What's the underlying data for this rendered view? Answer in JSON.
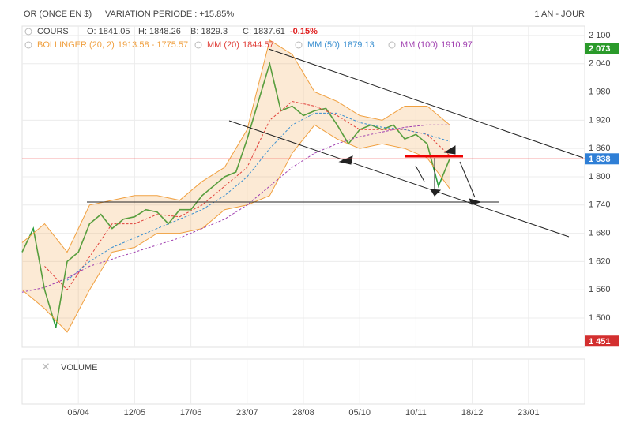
{
  "chart_data": {
    "type": "line",
    "title": "OR (ONCE EN $)",
    "subtitle": "VARIATION PERIODE : +15.85%",
    "period": "1 AN - JOUR",
    "quote": {
      "label": "COURS",
      "open": "O: 1841.05",
      "high": "H: 1848.26",
      "low": "B: 1829.3",
      "close": "C: 1837.61",
      "change": "-0.15%"
    },
    "volume_label": "VOLUME",
    "xlim": [
      0,
      250
    ],
    "xticks": [
      {
        "value": 25,
        "label": "06/04"
      },
      {
        "value": 50,
        "label": "12/05"
      },
      {
        "value": 75,
        "label": "17/06"
      },
      {
        "value": 100,
        "label": "23/07"
      },
      {
        "value": 125,
        "label": "28/08"
      },
      {
        "value": 150,
        "label": "05/10"
      },
      {
        "value": 175,
        "label": "10/11"
      },
      {
        "value": 200,
        "label": "18/12"
      },
      {
        "value": 225,
        "label": "23/01"
      }
    ],
    "ylim": [
      1438,
      2120
    ],
    "yticks": [
      {
        "value": 1500,
        "label": "1 500"
      },
      {
        "value": 1560,
        "label": "1 560"
      },
      {
        "value": 1620,
        "label": "1 620"
      },
      {
        "value": 1680,
        "label": "1 680"
      },
      {
        "value": 1740,
        "label": "1 740"
      },
      {
        "value": 1800,
        "label": "1 800"
      },
      {
        "value": 1860,
        "label": "1 860"
      },
      {
        "value": 1920,
        "label": "1 920"
      },
      {
        "value": 1980,
        "label": "1 980"
      },
      {
        "value": 2040,
        "label": "2 040"
      },
      {
        "value": 2100,
        "label": "2 100"
      }
    ],
    "grid": true,
    "price_line": {
      "value": 1838,
      "color": "#f04b4b"
    },
    "markers": [
      {
        "value": 2073,
        "label": "2 073",
        "color": "#2a9a2a"
      },
      {
        "value": 1838,
        "label": "1 838",
        "color": "#2f7fd6"
      },
      {
        "value": 1451,
        "label": "1 451",
        "color": "#d32f2f"
      }
    ],
    "series": [
      {
        "name": "COURS",
        "color": "#2e9e3e",
        "x": [
          0,
          5,
          10,
          15,
          20,
          25,
          30,
          35,
          40,
          45,
          50,
          55,
          60,
          65,
          70,
          75,
          80,
          85,
          90,
          95,
          100,
          105,
          110,
          115,
          120,
          125,
          130,
          135,
          140,
          145,
          150,
          155,
          160,
          165,
          170,
          175,
          180,
          185,
          190
        ],
        "values": [
          1640,
          1690,
          1560,
          1480,
          1620,
          1640,
          1700,
          1720,
          1690,
          1710,
          1715,
          1730,
          1725,
          1700,
          1730,
          1730,
          1760,
          1780,
          1800,
          1810,
          1880,
          1960,
          2040,
          1940,
          1950,
          1930,
          1940,
          1945,
          1910,
          1870,
          1900,
          1910,
          1900,
          1910,
          1880,
          1890,
          1870,
          1780,
          1838
        ]
      },
      {
        "name": "BOLLINGER (20, 2)",
        "legend_value": "1913.58 - 1775.57",
        "color": "#f0a040",
        "band": true,
        "x": [
          0,
          10,
          20,
          30,
          40,
          50,
          60,
          70,
          80,
          90,
          100,
          110,
          120,
          130,
          140,
          150,
          160,
          170,
          180,
          190
        ],
        "upper": [
          1660,
          1700,
          1640,
          1740,
          1750,
          1760,
          1760,
          1750,
          1790,
          1820,
          1900,
          2090,
          2060,
          1980,
          1960,
          1930,
          1920,
          1950,
          1950,
          1910
        ],
        "lower": [
          1560,
          1520,
          1470,
          1560,
          1640,
          1650,
          1680,
          1680,
          1690,
          1730,
          1740,
          1760,
          1850,
          1910,
          1880,
          1860,
          1870,
          1860,
          1840,
          1775
        ]
      },
      {
        "name": "MM (20)",
        "legend_value": "1844.57",
        "color": "#e0403a",
        "dashed": true,
        "x": [
          0,
          10,
          20,
          30,
          40,
          50,
          60,
          70,
          80,
          90,
          100,
          110,
          120,
          130,
          140,
          150,
          160,
          170,
          180,
          190
        ],
        "values": [
          null,
          1610,
          1560,
          1630,
          1700,
          1700,
          1720,
          1715,
          1740,
          1780,
          1820,
          1920,
          1960,
          1950,
          1930,
          1900,
          1900,
          1900,
          1890,
          1845
        ]
      },
      {
        "name": "MM (50)",
        "legend_value": "1879.13",
        "color": "#3a8fd0",
        "dashed": true,
        "x": [
          0,
          10,
          20,
          30,
          40,
          50,
          60,
          70,
          80,
          90,
          100,
          110,
          120,
          130,
          140,
          150,
          160,
          170,
          180,
          190
        ],
        "values": [
          null,
          null,
          1580,
          1620,
          1650,
          1670,
          1690,
          1710,
          1730,
          1760,
          1800,
          1860,
          1910,
          1935,
          1935,
          1915,
          1905,
          1900,
          1890,
          1875
        ]
      },
      {
        "name": "MM (100)",
        "legend_value": "1910.97",
        "color": "#a040b0",
        "dashed": true,
        "x": [
          0,
          10,
          20,
          30,
          40,
          50,
          60,
          70,
          80,
          90,
          100,
          110,
          120,
          130,
          140,
          150,
          160,
          170,
          180,
          190
        ],
        "values": [
          1555,
          1565,
          1585,
          1610,
          1625,
          1640,
          1655,
          1670,
          1690,
          1710,
          1740,
          1780,
          1820,
          1850,
          1870,
          1885,
          1895,
          1905,
          1910,
          1910
        ]
      }
    ]
  }
}
